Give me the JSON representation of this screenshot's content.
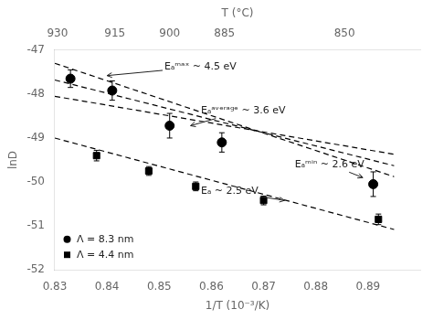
{
  "chart_data": {
    "type": "scatter",
    "xlabel": "1/T (10⁻³/K)",
    "ylabel": "lnD",
    "x2label": "T (°C)",
    "xlim": [
      0.83,
      0.9
    ],
    "ylim": [
      -52,
      -47
    ],
    "xticks": [
      0.83,
      0.84,
      0.85,
      0.86,
      0.87,
      0.88,
      0.89
    ],
    "yticks": [
      -52,
      -51,
      -50,
      -49,
      -48,
      -47
    ],
    "x2lim": [
      0.83,
      0.9
    ],
    "x2ticks": [
      {
        "value": 0.8305,
        "label": "930"
      },
      {
        "value": 0.8415,
        "label": "915"
      },
      {
        "value": 0.852,
        "label": "900"
      },
      {
        "value": 0.8625,
        "label": "885"
      },
      {
        "value": 0.8855,
        "label": "850"
      }
    ],
    "grid": false,
    "legend": "lower left",
    "series": [
      {
        "type": "line",
        "color": "black",
        "line_style": "dashed",
        "x": [
          0.83,
          0.895
        ],
        "values": [
          -47.3,
          -49.88
        ]
      },
      {
        "type": "line",
        "color": "black",
        "line_style": "dashed",
        "x": [
          0.83,
          0.895
        ],
        "values": [
          -47.68,
          -49.63
        ]
      },
      {
        "type": "line",
        "color": "black",
        "line_style": "dashed",
        "x": [
          0.83,
          0.895
        ],
        "values": [
          -48.05,
          -49.37
        ]
      },
      {
        "type": "line",
        "color": "black",
        "line_style": "dashed",
        "x": [
          0.83,
          0.895
        ],
        "values": [
          -49.0,
          -51.08
        ]
      },
      {
        "type": "scatter",
        "name": "Λ = 8.3 nm",
        "color": "black",
        "marker": "circle",
        "x": [
          0.833,
          0.841,
          0.852,
          0.862,
          0.891
        ],
        "values": [
          -47.65,
          -47.92,
          -48.72,
          -49.1,
          -50.05
        ],
        "yerr": [
          0.2,
          0.22,
          0.28,
          0.22,
          0.28
        ]
      },
      {
        "type": "scatter",
        "name": "Λ = 4.4 nm",
        "color": "black",
        "marker": "square",
        "x": [
          0.838,
          0.848,
          0.857,
          0.87,
          0.892
        ],
        "values": [
          -49.4,
          -49.75,
          -50.1,
          -50.42,
          -50.85
        ],
        "yerr": [
          0.12,
          0.1,
          0.1,
          0.1,
          0.12
        ]
      }
    ],
    "annotations": [
      {
        "text": "Eₐᵐᵃˣ ~ 4.5 eV",
        "x": 0.84,
        "y": -47.58,
        "text_x": 0.851,
        "text_y": -47.38
      },
      {
        "text": "Eₐᵃᵛᵉʳᵃᵍᵉ ~ 3.6 eV",
        "x": 0.856,
        "y": -48.72,
        "text_x": 0.858,
        "text_y": -48.38
      },
      {
        "text": "Eₐᵐⁱⁿ ~ 2.6 eV",
        "x": 0.889,
        "y": -49.9,
        "text_x": 0.876,
        "text_y": -49.6
      },
      {
        "text": "Eₐ ~ 2.5 eV",
        "x": 0.874,
        "y": -50.42,
        "text_x": 0.858,
        "text_y": -50.22
      }
    ]
  }
}
